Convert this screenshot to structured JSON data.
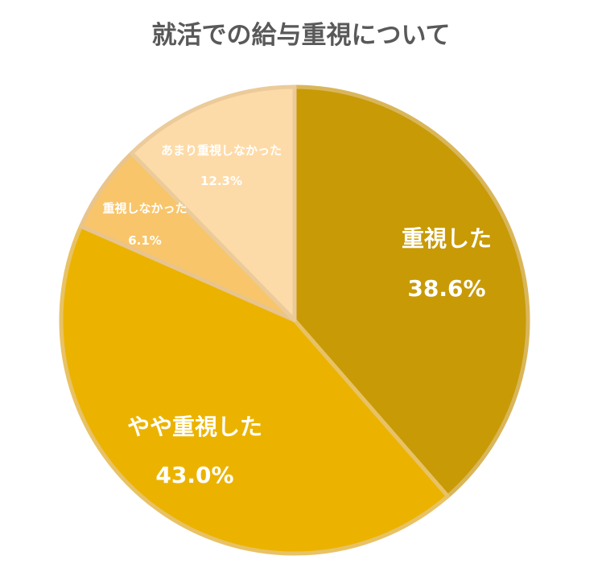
{
  "chart_data": {
    "type": "pie",
    "title": "就活での給与重視について",
    "start_angle": "12 o'clock, clockwise",
    "slices": [
      {
        "label": "重視した",
        "value": 38.6,
        "value_label": "38.6%",
        "color": "#C89A06",
        "border": "#D9B65A"
      },
      {
        "label": "やや重視した",
        "value": 43.0,
        "value_label": "43.0%",
        "color": "#EBB300",
        "border": "#E8C265"
      },
      {
        "label": "重視しなかった",
        "value": 6.1,
        "value_label": "6.1%",
        "color": "#F8C56A",
        "border": "#E9C48C"
      },
      {
        "label": "あまり重視しなかった",
        "value": 12.3,
        "value_label": "12.3%",
        "color": "#FDDBA8",
        "border": "#EBCB9A"
      }
    ]
  }
}
